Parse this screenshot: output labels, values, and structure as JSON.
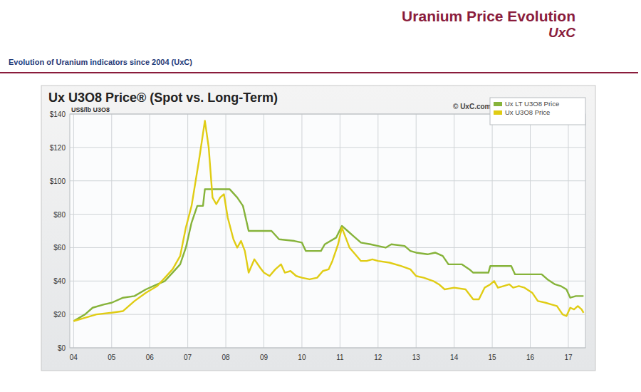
{
  "header": {
    "title": "Uranium Price Evolution",
    "source": "UxC",
    "caption": "Evolution of Uranium indicators since 2004 (UxC)"
  },
  "chart_data": {
    "type": "line",
    "title": "Ux U3O8 Price® (Spot vs. Long-Term)",
    "ylabel": "US$/lb U3O8",
    "annotations": [
      "© UxC.com"
    ],
    "xlim": [
      2003.9,
      2017.45
    ],
    "xticks": [
      {
        "value": 2004,
        "label": "04"
      },
      {
        "value": 2005,
        "label": "05"
      },
      {
        "value": 2006,
        "label": "06"
      },
      {
        "value": 2007,
        "label": "07"
      },
      {
        "value": 2008,
        "label": "08"
      },
      {
        "value": 2009,
        "label": "09"
      },
      {
        "value": 2010,
        "label": "10"
      },
      {
        "value": 2011,
        "label": "11"
      },
      {
        "value": 2012,
        "label": "12"
      },
      {
        "value": 2013,
        "label": "13"
      },
      {
        "value": 2014,
        "label": "14"
      },
      {
        "value": 2015,
        "label": "15"
      },
      {
        "value": 2016,
        "label": "16"
      },
      {
        "value": 2017,
        "label": "17"
      }
    ],
    "ylim": [
      0,
      140
    ],
    "yticks": [
      {
        "value": 0,
        "label": "$0"
      },
      {
        "value": 20,
        "label": "$20"
      },
      {
        "value": 40,
        "label": "$40"
      },
      {
        "value": 60,
        "label": "$60"
      },
      {
        "value": 80,
        "label": "$80"
      },
      {
        "value": 100,
        "label": "$100"
      },
      {
        "value": 120,
        "label": "$120"
      },
      {
        "value": 140,
        "label": "$140"
      }
    ],
    "grid": true,
    "legend": "upper right",
    "series": [
      {
        "name": "Ux LT U3O8 Price",
        "color": "#86b33a",
        "x": [
          2004.0,
          2004.3,
          2004.5,
          2004.8,
          2005.0,
          2005.3,
          2005.6,
          2005.9,
          2006.2,
          2006.4,
          2006.6,
          2006.8,
          2006.95,
          2007.1,
          2007.25,
          2007.4,
          2007.45,
          2008.1,
          2008.3,
          2008.45,
          2008.6,
          2009.2,
          2009.4,
          2009.8,
          2010.0,
          2010.1,
          2010.5,
          2010.6,
          2010.9,
          2011.05,
          2011.2,
          2011.35,
          2011.55,
          2011.8,
          2012.0,
          2012.2,
          2012.35,
          2012.7,
          2012.85,
          2013.0,
          2013.3,
          2013.5,
          2013.7,
          2013.85,
          2014.2,
          2014.4,
          2014.5,
          2014.9,
          2014.95,
          2015.5,
          2015.6,
          2016.3,
          2016.45,
          2016.65,
          2016.8,
          2016.95,
          2017.05,
          2017.2,
          2017.4
        ],
        "values": [
          16,
          20,
          24,
          26,
          27,
          30,
          31,
          35,
          38,
          40,
          45,
          50,
          60,
          75,
          85,
          85,
          95,
          95,
          90,
          85,
          70,
          70,
          65,
          64,
          63,
          58,
          58,
          62,
          66,
          73,
          70,
          67,
          63,
          62,
          61,
          60,
          62,
          61,
          58,
          57,
          56,
          57,
          55,
          50,
          50,
          47,
          45,
          45,
          49,
          49,
          44,
          44,
          41,
          38,
          37,
          35,
          30,
          31,
          31
        ]
      },
      {
        "name": "Ux U3O8 Price",
        "color": "#e0cc14",
        "x": [
          2004.0,
          2004.3,
          2004.6,
          2005.0,
          2005.3,
          2005.6,
          2005.9,
          2006.2,
          2006.4,
          2006.6,
          2006.8,
          2006.95,
          2007.1,
          2007.3,
          2007.45,
          2007.55,
          2007.65,
          2007.75,
          2007.85,
          2007.95,
          2008.05,
          2008.2,
          2008.3,
          2008.4,
          2008.5,
          2008.6,
          2008.75,
          2008.9,
          2009.0,
          2009.15,
          2009.3,
          2009.45,
          2009.55,
          2009.7,
          2009.85,
          2010.0,
          2010.2,
          2010.4,
          2010.55,
          2010.7,
          2010.8,
          2010.95,
          2011.05,
          2011.15,
          2011.25,
          2011.4,
          2011.55,
          2011.7,
          2011.85,
          2012.0,
          2012.3,
          2012.6,
          2012.85,
          2013.0,
          2013.2,
          2013.45,
          2013.6,
          2013.75,
          2014.0,
          2014.3,
          2014.5,
          2014.65,
          2014.8,
          2014.95,
          2015.05,
          2015.15,
          2015.3,
          2015.45,
          2015.55,
          2015.7,
          2015.85,
          2016.05,
          2016.2,
          2016.4,
          2016.55,
          2016.7,
          2016.85,
          2016.95,
          2017.05,
          2017.15,
          2017.25,
          2017.35,
          2017.4
        ],
        "values": [
          16,
          18,
          20,
          21,
          22,
          28,
          33,
          37,
          42,
          47,
          55,
          72,
          85,
          113,
          136,
          120,
          90,
          86,
          90,
          92,
          78,
          65,
          60,
          64,
          58,
          45,
          53,
          48,
          45,
          43,
          47,
          50,
          45,
          46,
          43,
          42,
          41,
          42,
          46,
          47,
          52,
          62,
          72,
          66,
          60,
          56,
          52,
          52,
          53,
          52,
          51,
          49,
          47,
          43,
          42,
          40,
          38,
          35,
          36,
          35,
          29,
          29,
          36,
          38,
          40,
          36,
          37,
          38,
          36,
          37,
          36,
          33,
          28,
          27,
          26,
          25,
          20,
          19,
          24,
          23,
          25,
          23,
          21
        ]
      }
    ]
  }
}
